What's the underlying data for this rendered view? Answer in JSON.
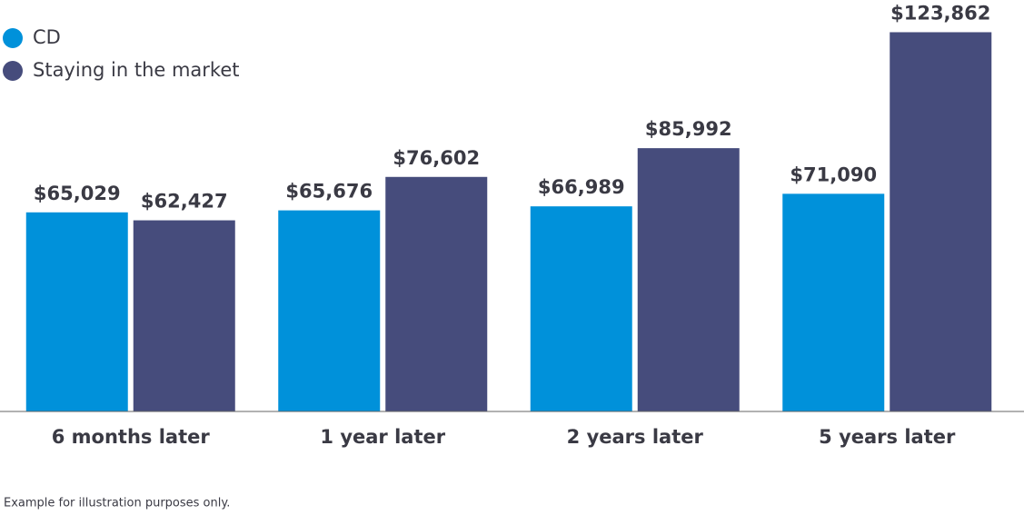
{
  "chart_data": {
    "type": "bar",
    "categories": [
      "6 months later",
      "1 year later",
      "2 years later",
      "5 years later"
    ],
    "series": [
      {
        "name": "CD",
        "color": "#0091da",
        "values": [
          65029,
          65676,
          66989,
          71090
        ],
        "value_labels": [
          "$65,029",
          "$65,676",
          "$66,989",
          "$71,090"
        ]
      },
      {
        "name": "Staying in the market",
        "color": "#464c7c",
        "values": [
          62427,
          76602,
          85992,
          123862
        ],
        "value_labels": [
          "$62,427",
          "$76,602",
          "$85,992",
          "$123,862"
        ]
      }
    ],
    "ylim": [
      0,
      124000
    ],
    "legend": "top-left",
    "footnote": "Example for illustration purposes only."
  }
}
